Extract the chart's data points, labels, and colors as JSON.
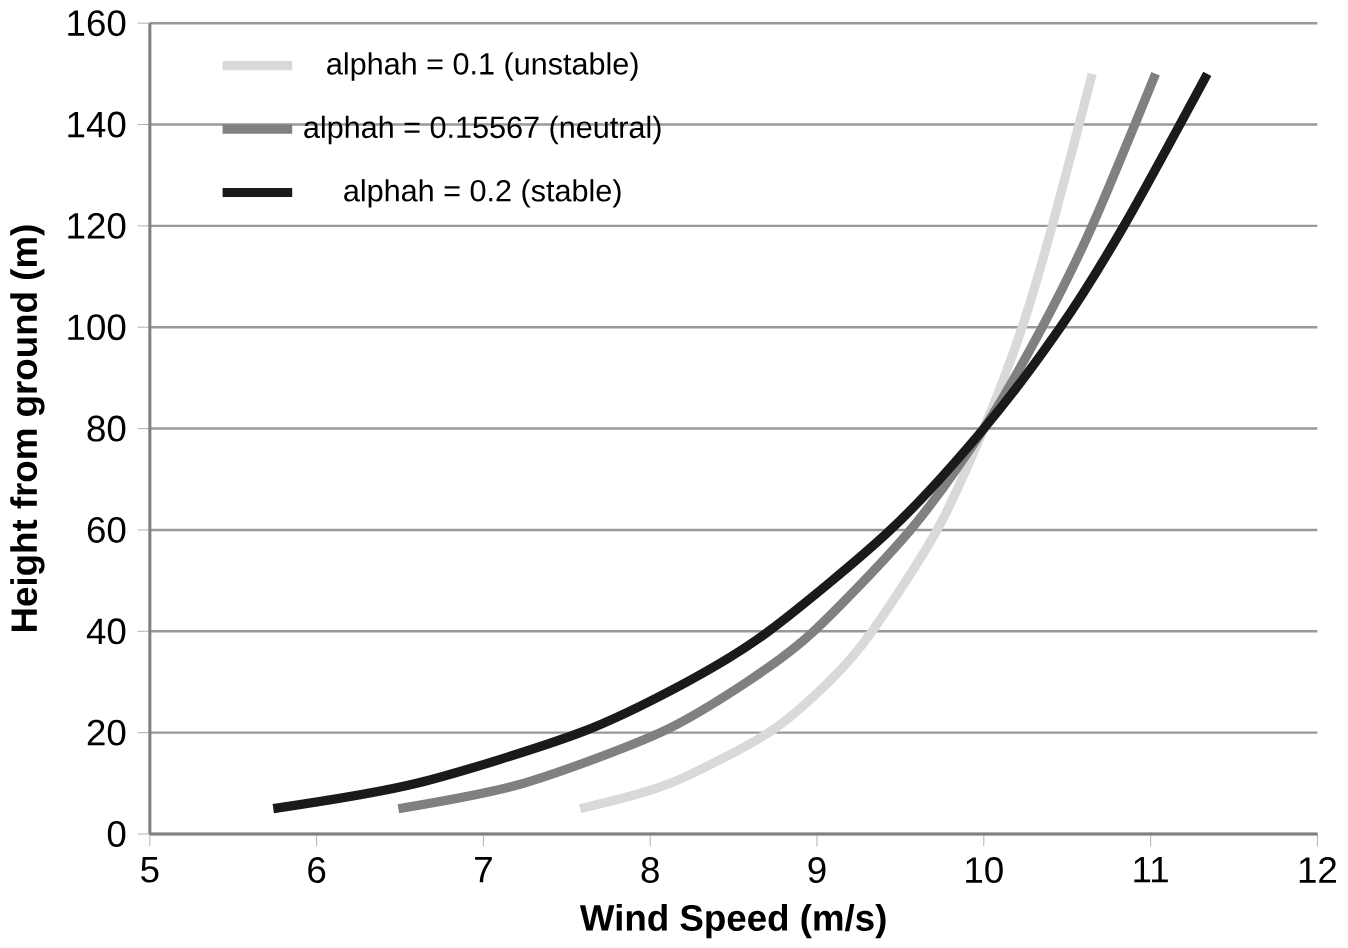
{
  "chart_data": {
    "type": "line",
    "xlabel": "Wind Speed (m/s)",
    "ylabel": "Height from ground (m)",
    "xlim": [
      5,
      12
    ],
    "xticks": [
      5,
      6,
      7,
      8,
      9,
      10,
      11,
      12
    ],
    "ylim": [
      0,
      160
    ],
    "yticks": [
      0,
      20,
      40,
      60,
      80,
      100,
      120,
      140,
      160
    ],
    "grid": "y",
    "legend": "top left",
    "marker": "none",
    "line_style": "solid",
    "series": [
      {
        "name": "alphah = 0.1 (unstable)",
        "color": "#d9d9d9",
        "x": [
          7.58,
          8.12,
          8.71,
          9.07,
          9.33,
          9.72,
          10.0,
          10.23,
          10.41,
          10.65
        ],
        "values": [
          5,
          10,
          20,
          30,
          40,
          60,
          80,
          100,
          120,
          150
        ]
      },
      {
        "name": "alphah = 0.15567 (neutral)",
        "color": "#808080",
        "x": [
          6.49,
          7.24,
          8.06,
          8.58,
          8.98,
          9.56,
          10.0,
          10.35,
          10.65,
          11.03
        ],
        "values": [
          5,
          10,
          20,
          30,
          40,
          60,
          80,
          100,
          120,
          150
        ]
      },
      {
        "name": "alphah = 0.2 (stable)",
        "color": "#1a1a1a",
        "x": [
          5.74,
          6.6,
          7.58,
          8.22,
          8.71,
          9.44,
          10.0,
          10.46,
          10.84,
          11.34
        ],
        "values": [
          5,
          10,
          20,
          30,
          40,
          60,
          80,
          100,
          120,
          150
        ]
      }
    ]
  }
}
